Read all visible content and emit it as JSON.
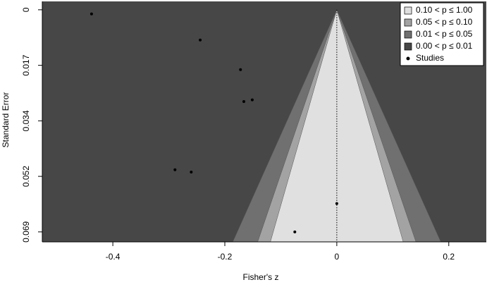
{
  "chart_data": {
    "type": "funnel",
    "xlabel": "Fisher's z",
    "ylabel": "Standard Error",
    "xlim": [
      -0.526,
      0.267
    ],
    "ylim": [
      -0.0026,
      0.0721
    ],
    "y_inverted": true,
    "xticks": [
      -0.4,
      -0.2,
      0,
      0.2
    ],
    "yticks": [
      0,
      {
        "value": 0.01725,
        "label": "0.017"
      },
      {
        "value": 0.0345,
        "label": "0.034"
      },
      {
        "value": 0.05175,
        "label": "0.052"
      },
      0.069
    ],
    "center": 0,
    "legend": "top-right",
    "contours": [
      {
        "name": "0.10 < p ≤ 1.00",
        "color": "#e0e0e0",
        "p_min": 0.1
      },
      {
        "name": "0.05 < p ≤ 0.10",
        "color": "#a3a3a3",
        "p_min": 0.05
      },
      {
        "name": "0.01 < p ≤ 0.05",
        "color": "#707070",
        "p_min": 0.01
      },
      {
        "name": "0.00 < p ≤ 0.01",
        "color": "#474747",
        "p_min": 0
      }
    ],
    "series": [
      {
        "name": "Studies",
        "color": "#000000",
        "x": [
          -0.438,
          -0.244,
          -0.172,
          -0.151,
          -0.166,
          -0.289,
          -0.26,
          0,
          -0.075
        ],
        "values": [
          0.0013,
          0.0094,
          0.0186,
          0.028,
          0.0285,
          0.0497,
          0.0504,
          0.0602,
          0.069
        ]
      }
    ]
  }
}
